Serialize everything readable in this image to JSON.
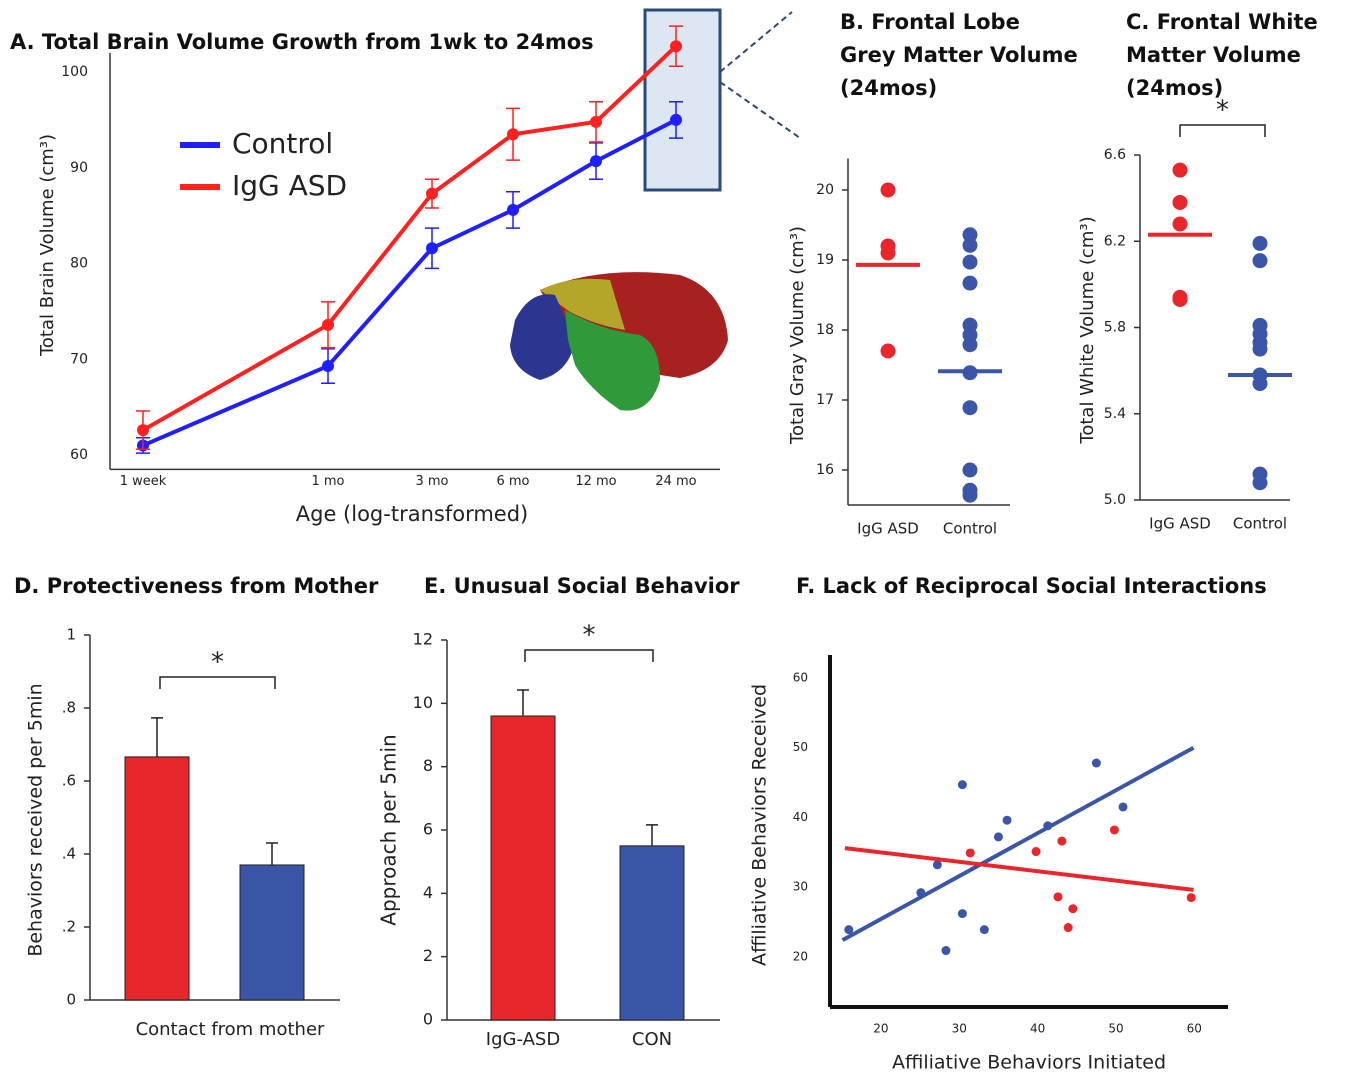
{
  "chart_data": [
    {
      "type": "line",
      "title": "A. Total Brain Volume Growth from 1wk to 24mos",
      "xlabel": "Age (log-transformed)",
      "ylabel": "Total Brain Volume (cm³)",
      "categories": [
        "1 week",
        "1 mo",
        "3 mo",
        "6 mo",
        "12 mo",
        "24 mo"
      ],
      "series": [
        {
          "name": "Control",
          "color": "#1f1fff",
          "values": [
            61.0,
            69.3,
            81.6,
            85.6,
            90.7,
            95.0
          ],
          "errors": [
            0.8,
            1.8,
            2.1,
            1.9,
            1.9,
            1.9
          ]
        },
        {
          "name": "IgG ASD",
          "color": "#ff2020",
          "values": [
            62.6,
            73.6,
            87.3,
            93.5,
            94.8,
            102.7
          ],
          "errors": [
            2.0,
            2.4,
            1.5,
            2.7,
            2.1,
            2.1
          ]
        }
      ],
      "ylim": [
        58.5,
        102
      ],
      "yticks": [
        60,
        70,
        80,
        90,
        100
      ],
      "grid": false
    },
    {
      "type": "dot",
      "title": "B. Frontal Lobe Grey Matter Volume (24mos)",
      "ylabel": "Total Gray Volume (cm³)",
      "series": [
        {
          "name": "IgG ASD",
          "color": "#e8262b",
          "values": [
            20.0,
            19.2,
            19.1,
            17.7
          ],
          "mean": 18.93
        },
        {
          "name": "Control",
          "color": "#3b55a8",
          "values": [
            19.36,
            19.21,
            18.97,
            18.67,
            18.07,
            17.93,
            17.79,
            17.39,
            16.89,
            16.0,
            15.71,
            15.64
          ],
          "mean": 17.41
        }
      ],
      "ylim": [
        15.5,
        20.45
      ],
      "yticks": [
        16,
        17,
        18,
        19,
        20
      ]
    },
    {
      "type": "dot",
      "title": "C. Frontal White Matter Volume (24mos)",
      "ylabel": "Total White Volume (cm³)",
      "significance": "*",
      "series": [
        {
          "name": "IgG ASD",
          "color": "#e8262b",
          "values": [
            6.53,
            6.38,
            6.28,
            5.94,
            5.93
          ],
          "mean": 6.23
        },
        {
          "name": "Control",
          "color": "#3b55a8",
          "values": [
            6.19,
            6.11,
            5.81,
            5.77,
            5.73,
            5.7,
            5.58,
            5.54,
            5.12,
            5.08
          ],
          "mean": 5.58
        }
      ],
      "ylim": [
        5.0,
        6.6
      ],
      "yticks": [
        {
          "value": 5,
          "label": "5.0"
        },
        5.4,
        5.8,
        6.2,
        6.6
      ]
    },
    {
      "type": "bar",
      "title": "D. Protectiveness from Mother",
      "ylabel": "Behaviors received per 5min",
      "xlabel": "Contact from mother",
      "significance": "*",
      "values": [
        0.666,
        0.37
      ],
      "errors": [
        0.107,
        0.06
      ],
      "colors": [
        "#e8262b",
        "#3b55a8"
      ],
      "ylim": [
        0,
        1
      ],
      "yticks": [
        0,
        {
          "value": 0.2,
          "label": ".2"
        },
        {
          "value": 0.4,
          "label": ".4"
        },
        {
          "value": 0.6,
          "label": ".6"
        },
        {
          "value": 0.8,
          "label": ".8"
        },
        1
      ]
    },
    {
      "type": "bar",
      "title": "E. Unusual Social Behavior",
      "ylabel": "Approach per 5min",
      "significance": "*",
      "categories": [
        "IgG-ASD",
        "CON"
      ],
      "values": [
        9.6,
        5.5
      ],
      "errors": [
        0.82,
        0.66
      ],
      "colors": [
        "#e8262b",
        "#3b55a8"
      ],
      "ylim": [
        0,
        12
      ],
      "yticks": [
        0,
        2,
        4,
        6,
        8,
        10,
        12
      ]
    },
    {
      "type": "scatter",
      "title": "F. Lack of Reciprocal Social Interactions",
      "xlabel": "Affiliative Behaviors Initiated",
      "ylabel": "Affiliative Behaviors Received",
      "series": [
        {
          "color": "#3b55a8",
          "x": [
            15.9,
            25.1,
            27.2,
            30.4,
            30.4,
            28.3,
            33.2,
            35.0,
            36.1,
            41.3,
            47.5,
            50.9
          ],
          "values": [
            23.9,
            29.2,
            33.2,
            44.7,
            26.2,
            20.9,
            23.9,
            37.2,
            39.6,
            38.8,
            47.8,
            41.5
          ],
          "fit": {
            "x": [
              15.1,
              59.9
            ],
            "y": [
              22.4,
              50.0
            ]
          }
        },
        {
          "color": "#e8262b",
          "x": [
            31.4,
            39.8,
            43.1,
            42.6,
            44.5,
            43.9,
            49.8,
            59.6
          ],
          "values": [
            34.9,
            35.1,
            36.6,
            28.6,
            26.9,
            24.2,
            38.2,
            28.5
          ],
          "fit": {
            "x": [
              15.4,
              59.9
            ],
            "y": [
              35.6,
              29.6
            ]
          }
        }
      ],
      "xlim": [
        13.5,
        64.3
      ],
      "ylim": [
        12.8,
        63.3
      ],
      "xticks": [
        20,
        30,
        40,
        50,
        60
      ],
      "yticks": [
        20,
        30,
        40,
        50,
        60
      ]
    }
  ]
}
